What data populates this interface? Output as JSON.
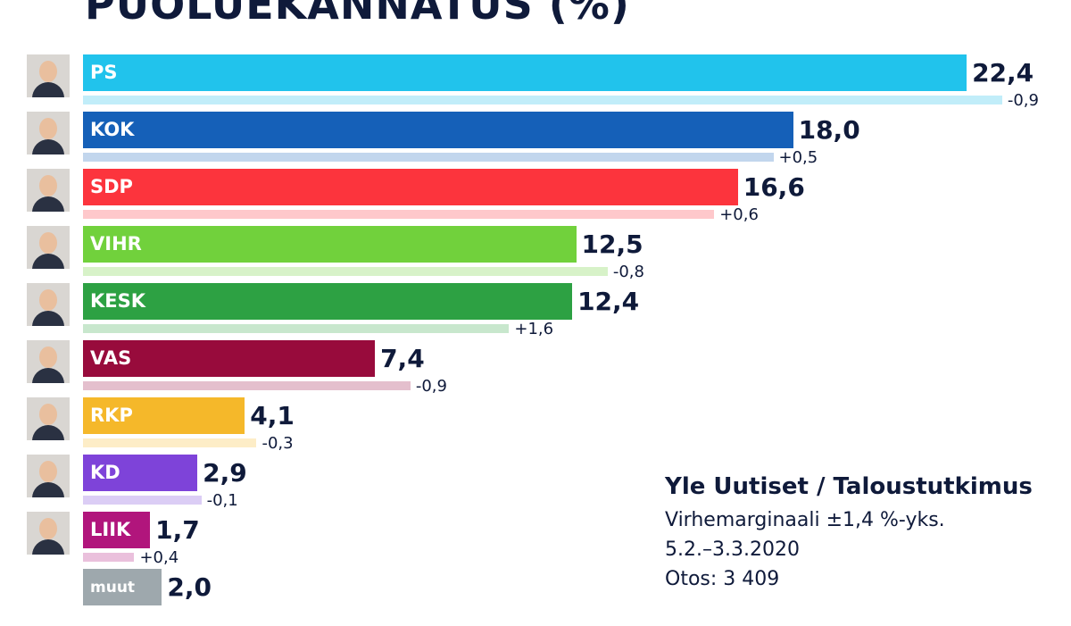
{
  "title": "PUOLUEKANNATUS (%)",
  "source": {
    "title": "Yle Uutiset / Taloustutkimus",
    "margin": "Virhemarginaali ±1,4 %-yks.",
    "dates": "5.2.–3.3.2020",
    "sample": "Otos: 3 409"
  },
  "chart_data": {
    "type": "bar",
    "orientation": "horizontal",
    "categories": [
      "PS",
      "KOK",
      "SDP",
      "VIHR",
      "KESK",
      "VAS",
      "RKP",
      "KD",
      "LIIK",
      "muut"
    ],
    "values": [
      22.4,
      18.0,
      16.6,
      12.5,
      12.4,
      7.4,
      4.1,
      2.9,
      1.7,
      2.0
    ],
    "value_labels": [
      "22,4",
      "18,0",
      "16,6",
      "12,5",
      "12,4",
      "7,4",
      "4,1",
      "2,9",
      "1,7",
      "2,0"
    ],
    "previous_values": [
      23.3,
      17.5,
      16.0,
      13.3,
      10.8,
      8.3,
      4.4,
      3.0,
      1.3,
      null
    ],
    "change_labels": [
      "-0,9",
      "+0,5",
      "+0,6",
      "-0,8",
      "+1,6",
      "-0,9",
      "-0,3",
      "-0,1",
      "+0,4",
      ""
    ],
    "colors": [
      "#21c3ec",
      "#1560b8",
      "#fc343d",
      "#71d13c",
      "#2da143",
      "#980b3c",
      "#f5b82a",
      "#7e43d9",
      "#b1157c",
      "#9ea8ad"
    ],
    "light_colors": [
      "#c1edf9",
      "#c2d6ed",
      "#fec8cb",
      "#d7f2c8",
      "#c8e7cd",
      "#e4bfcd",
      "#fdedc7",
      "#dbcdf5",
      "#eac0dc",
      "#e1e4e6"
    ],
    "has_avatar": [
      true,
      true,
      true,
      true,
      true,
      true,
      true,
      true,
      true,
      false
    ]
  }
}
